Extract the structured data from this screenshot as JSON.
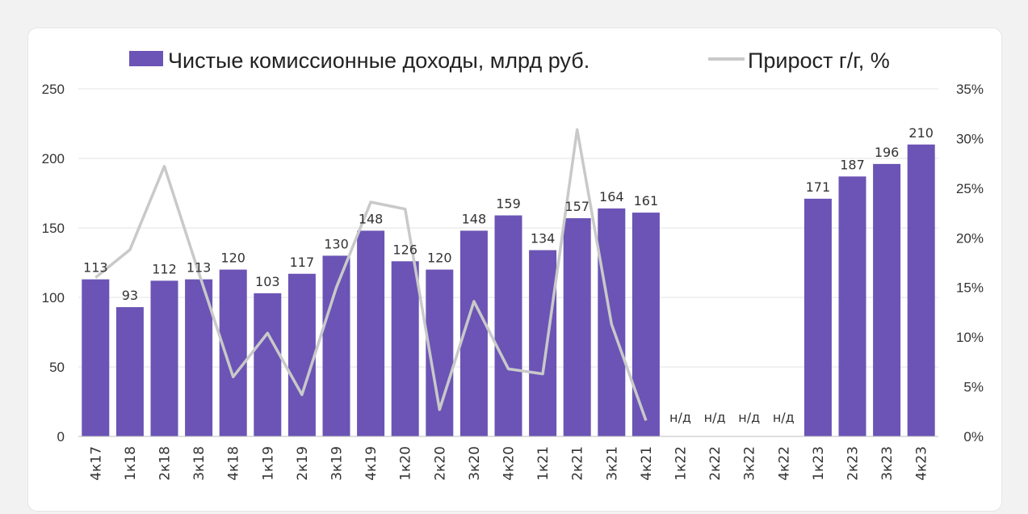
{
  "chart_data": {
    "type": "bar+line",
    "legend": {
      "bar_label": "Чистые комиссионные доходы, млрд руб.",
      "line_label": "Прирост г/г, %",
      "placement": "top"
    },
    "categories": [
      "4к17",
      "1к18",
      "2к18",
      "3к18",
      "4к18",
      "1к19",
      "2к19",
      "3к19",
      "4к19",
      "1к20",
      "2к20",
      "3к20",
      "4к20",
      "1к21",
      "2к21",
      "3к21",
      "4к21",
      "1к22",
      "2к22",
      "3к22",
      "4к22",
      "1к23",
      "2к23",
      "3к23",
      "4к23"
    ],
    "bar_values": [
      113,
      93,
      112,
      113,
      120,
      103,
      117,
      130,
      148,
      126,
      120,
      148,
      159,
      134,
      157,
      164,
      161,
      null,
      null,
      null,
      null,
      171,
      187,
      196,
      210
    ],
    "bar_labels": [
      "113",
      "93",
      "112",
      "113",
      "120",
      "103",
      "117",
      "130",
      "148",
      "126",
      "120",
      "148",
      "159",
      "134",
      "157",
      "164",
      "161",
      "н/д",
      "н/д",
      "н/д",
      "н/д",
      "171",
      "187",
      "196",
      "210"
    ],
    "line_values": [
      16,
      18.8,
      27.2,
      16.5,
      6,
      10.4,
      4.2,
      15,
      23.6,
      22.9,
      2.7,
      13.6,
      6.8,
      6.3,
      30.9,
      11.3,
      1.6,
      null,
      null,
      null,
      null,
      null,
      null,
      null,
      null
    ],
    "y_left": {
      "min": 0,
      "max": 250,
      "ticks": [
        "0",
        "50",
        "100",
        "150",
        "200",
        "250"
      ]
    },
    "y_right": {
      "min": 0,
      "max": 35,
      "ticks": [
        "0%",
        "5%",
        "10%",
        "15%",
        "20%",
        "25%",
        "30%",
        "35%"
      ]
    },
    "grid": true,
    "colors": {
      "bar": "#6b54b5",
      "line": "#c9c9c9",
      "grid": "#e3e3e3",
      "axis": "#bfbfbf"
    }
  }
}
